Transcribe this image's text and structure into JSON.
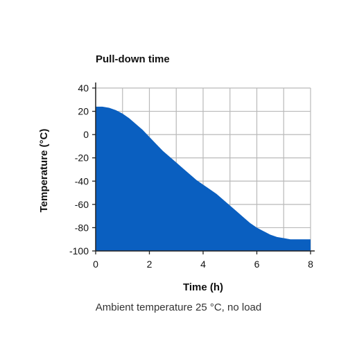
{
  "chart_data": {
    "type": "area",
    "title": "Pull-down time",
    "xlabel": "Time (h)",
    "ylabel": "Temperature (°C)",
    "caption": "Ambient temperature 25 °C, no load",
    "xlim": [
      0,
      8
    ],
    "ylim": [
      -100,
      40
    ],
    "x_ticks": [
      0,
      2,
      4,
      6,
      8
    ],
    "y_ticks": [
      40,
      20,
      0,
      -20,
      -40,
      -60,
      -80,
      -100
    ],
    "grid": true,
    "colors": {
      "fill": "#0a5fc0",
      "grid": "#b9b9b9",
      "axis": "#222222"
    },
    "series": [
      {
        "x": [
          0,
          0.25,
          0.5,
          0.75,
          1,
          1.25,
          1.5,
          1.75,
          2,
          2.25,
          2.5,
          2.75,
          3,
          3.25,
          3.5,
          3.75,
          4,
          4.25,
          4.5,
          4.75,
          5,
          5.25,
          5.5,
          5.75,
          6,
          6.25,
          6.5,
          6.75,
          7,
          7.25,
          7.5,
          7.75,
          8
        ],
        "y": [
          24,
          24,
          23,
          21,
          18,
          14,
          9,
          4,
          -2,
          -8,
          -14,
          -19,
          -24,
          -29,
          -34,
          -39,
          -43,
          -47,
          -51,
          -56,
          -61,
          -66,
          -71,
          -76,
          -80,
          -83,
          -86,
          -88,
          -89,
          -90,
          -90,
          -90,
          -90
        ]
      }
    ]
  }
}
